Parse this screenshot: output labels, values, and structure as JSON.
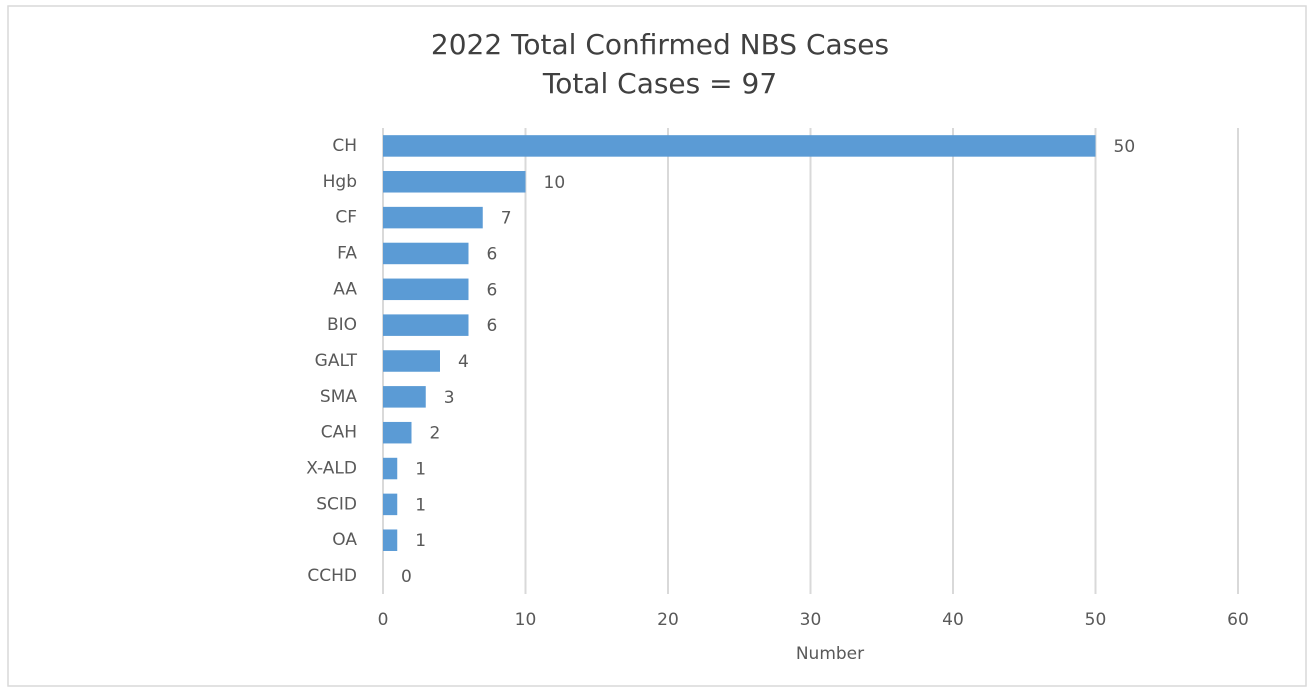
{
  "chart_data": {
    "type": "bar",
    "orientation": "horizontal",
    "title": "2022 Total Confirmed NBS Cases",
    "subtitle": "Total Cases = 97",
    "x_label": "Number",
    "categories": [
      "CH",
      "Hgb",
      "CF",
      "FA",
      "AA",
      "BIO",
      "GALT",
      "SMA",
      "CAH",
      "X-ALD",
      "SCID",
      "OA",
      "CCHD"
    ],
    "values": [
      50,
      10,
      7,
      6,
      6,
      6,
      4,
      3,
      2,
      1,
      1,
      1,
      0
    ],
    "color": "#5b9bd5",
    "xlim": [
      0,
      60
    ],
    "xticks": [
      0,
      10,
      20,
      30,
      40,
      50,
      60
    ],
    "grid": true
  }
}
